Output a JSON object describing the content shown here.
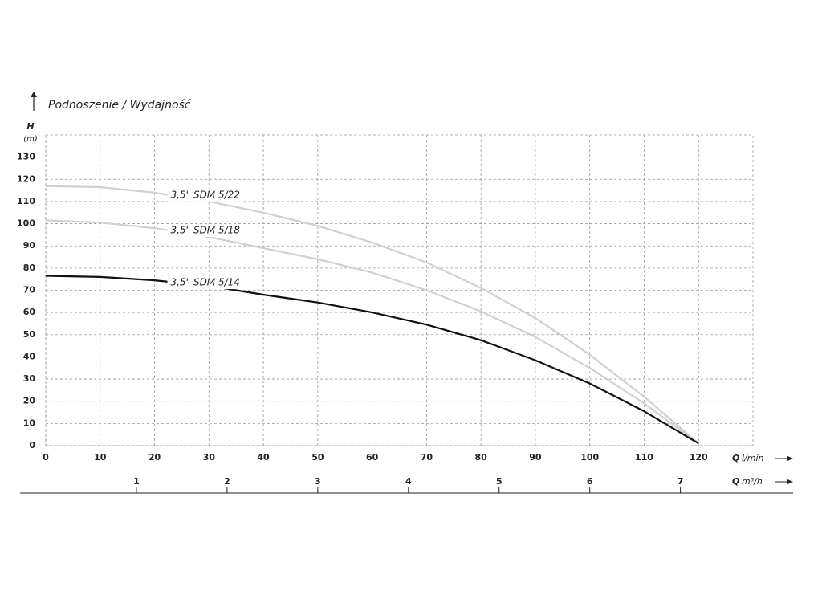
{
  "chart_data": {
    "type": "line",
    "title": "Podnoszenie / Wydajność",
    "ylabel": "H",
    "yunit": "(m)",
    "x_symbol": "Q",
    "xlabel_unit": "l/min",
    "x2_symbol": "Q",
    "x2label_unit": "m³/h",
    "x": [
      0,
      10,
      20,
      30,
      40,
      50,
      60,
      70,
      80,
      90,
      100,
      110,
      120
    ],
    "series": [
      {
        "name": "3,5\" SDM 5/22",
        "color": "#d0d0d0",
        "values": [
          117,
          116.5,
          114,
          110,
          105,
          99,
          91.5,
          82.5,
          71,
          57.5,
          41,
          22,
          1
        ]
      },
      {
        "name": "3,5\" SDM 5/18",
        "color": "#d0d0d0",
        "values": [
          101.5,
          100.5,
          98,
          94,
          89,
          84,
          78,
          70,
          60.5,
          49,
          35,
          19,
          1
        ]
      },
      {
        "name": "3,5\" SDM 5/14",
        "color": "#111111",
        "values": [
          76.5,
          76,
          74.5,
          72,
          68,
          64.5,
          60,
          54.5,
          47.5,
          38.5,
          28,
          15.5,
          1
        ]
      }
    ],
    "xlim": [
      0,
      130
    ],
    "xticks": [
      0,
      10,
      20,
      30,
      40,
      50,
      60,
      70,
      80,
      90,
      100,
      110,
      120
    ],
    "ylim": [
      0,
      140
    ],
    "yticks": [
      0,
      10,
      20,
      30,
      40,
      50,
      60,
      70,
      80,
      90,
      100,
      110,
      120,
      130
    ],
    "x2lim": [
      0,
      7.8
    ],
    "x2ticks": [
      1,
      2,
      3,
      4,
      5,
      6,
      7
    ],
    "grid": true
  }
}
